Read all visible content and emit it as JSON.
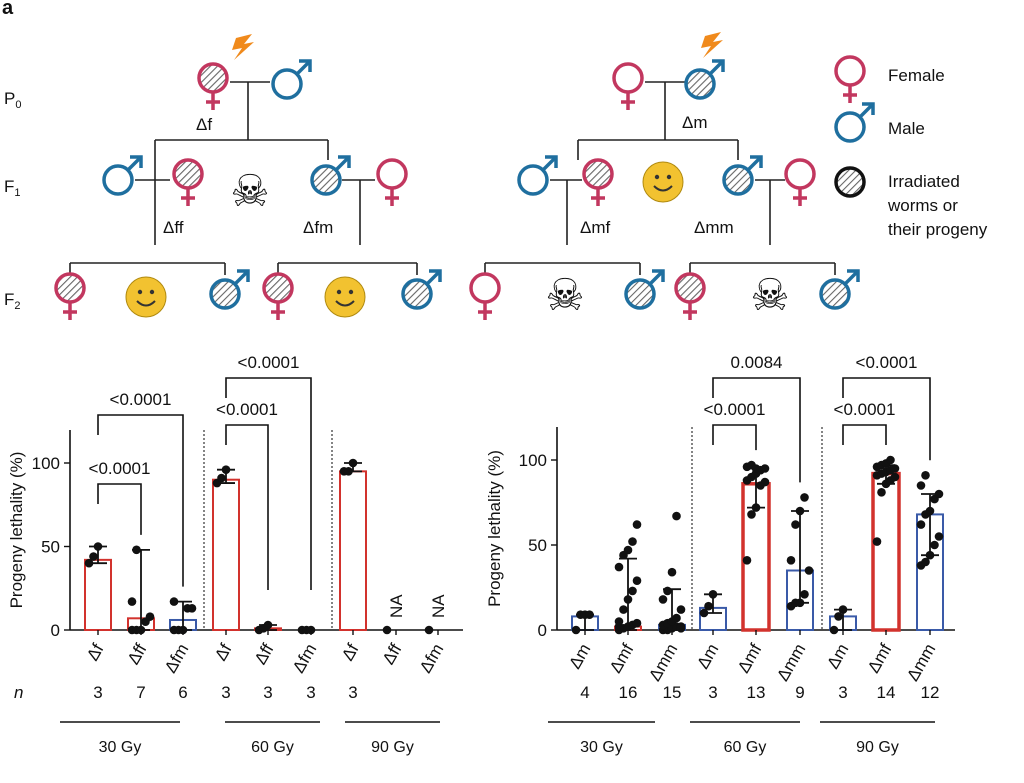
{
  "panel_label": "a",
  "pedigree": {
    "generations": [
      {
        "base": "P",
        "sub": "0"
      },
      {
        "base": "F",
        "sub": "1"
      },
      {
        "base": "F",
        "sub": "2"
      }
    ],
    "left": {
      "p0_label": "Δf",
      "f1_labels": [
        "Δff",
        "Δfm"
      ]
    },
    "right": {
      "p0_label": "Δm",
      "f1_labels": [
        "Δmf",
        "Δmm"
      ]
    },
    "legend": {
      "female": "Female",
      "male": "Male",
      "irradiated_line1": "Irradiated",
      "irradiated_line2": "worms or",
      "irradiated_line3": "their progeny"
    },
    "colors": {
      "female": "#c2375f",
      "male": "#1f6f9f",
      "smiley": "#f2c230",
      "lightning": "#f08a1c"
    }
  },
  "chart_data": [
    {
      "type": "bar",
      "ylabel": "Progeny lethality (%)",
      "ylim": [
        0,
        120
      ],
      "yticks": [
        "0",
        "50",
        "100"
      ],
      "n_label": "n",
      "groups": [
        "30 Gy",
        "60 Gy",
        "90 Gy"
      ],
      "bars": [
        {
          "label": "Δf",
          "group": 0,
          "value": 42,
          "n": "3",
          "color": "#d2322d",
          "points": [
            40,
            44,
            50
          ],
          "err": [
            40,
            50
          ]
        },
        {
          "label": "Δff",
          "group": 0,
          "value": 7,
          "n": "7",
          "color": "#d2322d",
          "points": [
            0,
            0,
            0,
            5,
            8,
            17,
            48
          ],
          "err": [
            0,
            48
          ]
        },
        {
          "label": "Δfm",
          "group": 0,
          "value": 6,
          "n": "6",
          "color": "#3a5aa8",
          "points": [
            0,
            0,
            0,
            13,
            13,
            17
          ],
          "err": [
            0,
            17
          ]
        },
        {
          "label": "Δf",
          "group": 1,
          "value": 90,
          "n": "3",
          "color": "#d2322d",
          "points": [
            88,
            91,
            96
          ],
          "err": [
            88,
            96
          ]
        },
        {
          "label": "Δff",
          "group": 1,
          "value": 1,
          "n": "3",
          "color": "#d2322d",
          "points": [
            0,
            1,
            3
          ],
          "err": [
            0,
            3
          ]
        },
        {
          "label": "Δfm",
          "group": 1,
          "value": 0,
          "n": "3",
          "color": "#3a5aa8",
          "points": [
            0,
            0,
            0
          ],
          "err": null
        },
        {
          "label": "Δf",
          "group": 2,
          "value": 95,
          "n": "3",
          "color": "#d2322d",
          "points": [
            95,
            95,
            100
          ],
          "err": [
            95,
            100
          ]
        },
        {
          "label": "Δff",
          "group": 2,
          "value": null,
          "n": "",
          "color": "#d2322d",
          "points": [
            0
          ],
          "err": null,
          "annotation": "NA"
        },
        {
          "label": "Δfm",
          "group": 2,
          "value": null,
          "n": "",
          "color": "#3a5aa8",
          "points": [
            0
          ],
          "err": null,
          "annotation": "NA"
        }
      ],
      "comparisons": [
        {
          "from": 0,
          "to": 1,
          "p": "<0.0001",
          "level": 1
        },
        {
          "from": 0,
          "to": 2,
          "p": "<0.0001",
          "level": 2
        },
        {
          "from": 3,
          "to": 4,
          "p": "<0.0001",
          "level": 1
        },
        {
          "from": 3,
          "to": 5,
          "p": "<0.0001",
          "level": 2
        }
      ]
    },
    {
      "type": "bar",
      "ylabel": "Progeny lethality (%)",
      "ylim": [
        0,
        120
      ],
      "yticks": [
        "0",
        "50",
        "100"
      ],
      "n_label": "",
      "groups": [
        "30 Gy",
        "60 Gy",
        "90 Gy"
      ],
      "bars": [
        {
          "label": "Δm",
          "group": 0,
          "value": 8,
          "n": "4",
          "color": "#3a5aa8",
          "points": [
            0,
            9,
            9,
            9
          ],
          "err": [
            0,
            9
          ]
        },
        {
          "label": "Δmf",
          "group": 0,
          "value": 2,
          "n": "16",
          "color": "#d2322d",
          "points": [
            0,
            1,
            2,
            3,
            4,
            5,
            12,
            18,
            23,
            29,
            37,
            44,
            47,
            52,
            62,
            2
          ],
          "err": [
            0,
            42
          ]
        },
        {
          "label": "Δmm",
          "group": 0,
          "value": 3,
          "n": "15",
          "color": "#3a5aa8",
          "points": [
            0,
            0,
            1,
            2,
            2,
            3,
            4,
            5,
            7,
            12,
            18,
            23,
            34,
            67,
            1
          ],
          "err": [
            0,
            24
          ]
        },
        {
          "label": "Δm",
          "group": 1,
          "value": 13,
          "n": "3",
          "color": "#3a5aa8",
          "points": [
            10,
            14,
            21
          ],
          "err": [
            10,
            21
          ]
        },
        {
          "label": "Δmf",
          "group": 1,
          "value": 86,
          "n": "13",
          "color": "#d2322d",
          "points": [
            41,
            68,
            72,
            85,
            87,
            88,
            90,
            92,
            94,
            95,
            96,
            97,
            95
          ],
          "err": [
            72,
            95
          ]
        },
        {
          "label": "Δmm",
          "group": 1,
          "value": 35,
          "n": "9",
          "color": "#3a5aa8",
          "points": [
            14,
            16,
            16,
            21,
            35,
            41,
            62,
            70,
            78
          ],
          "err": [
            16,
            70
          ]
        },
        {
          "label": "Δm",
          "group": 2,
          "value": 8,
          "n": "3",
          "color": "#3a5aa8",
          "points": [
            0,
            8,
            12
          ],
          "err": [
            0,
            12
          ]
        },
        {
          "label": "Δmf",
          "group": 2,
          "value": 92,
          "n": "14",
          "color": "#d2322d",
          "points": [
            52,
            81,
            86,
            88,
            90,
            91,
            92,
            93,
            94,
            95,
            96,
            97,
            98,
            100
          ],
          "err": [
            86,
            97
          ]
        },
        {
          "label": "Δmm",
          "group": 2,
          "value": 68,
          "n": "12",
          "color": "#3a5aa8",
          "points": [
            38,
            40,
            44,
            50,
            55,
            62,
            68,
            70,
            77,
            80,
            85,
            91
          ],
          "err": [
            44,
            80
          ]
        }
      ],
      "comparisons": [
        {
          "from": 3,
          "to": 4,
          "p": "<0.0001",
          "level": 1
        },
        {
          "from": 3,
          "to": 5,
          "p": "0.0084",
          "level": 2
        },
        {
          "from": 6,
          "to": 7,
          "p": "<0.0001",
          "level": 1
        },
        {
          "from": 6,
          "to": 8,
          "p": "<0.0001",
          "level": 2
        }
      ]
    }
  ]
}
